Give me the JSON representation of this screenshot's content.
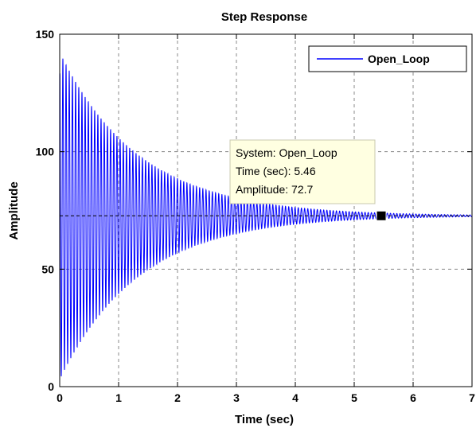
{
  "chart_data": {
    "type": "line",
    "title": "Step Response",
    "xlabel": "Time (sec)",
    "ylabel": "Amplitude",
    "xlim": [
      0,
      7
    ],
    "ylim": [
      0,
      150
    ],
    "xticks": [
      0,
      1,
      2,
      3,
      4,
      5,
      6,
      7
    ],
    "yticks": [
      0,
      50,
      100,
      150
    ],
    "grid": true,
    "legend_position": "top-right",
    "series": [
      {
        "name": "Open_Loop",
        "color": "#0000ff",
        "steady_state": 72.7,
        "initial_peak": 142,
        "initial_trough": 3,
        "decay_time_constant_sec": 1.35,
        "oscillation_period_sec": 0.054,
        "settling_time_sec": 5.5
      }
    ],
    "data_tip": {
      "system_label": "System: Open_Loop",
      "time_label": "Time (sec): 5.46",
      "amplitude_label": "Amplitude: 72.7",
      "x": 5.46,
      "y": 72.7
    }
  }
}
